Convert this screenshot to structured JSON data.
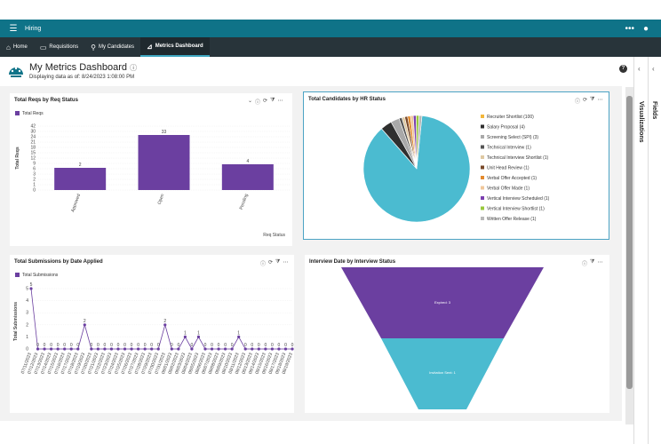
{
  "app": {
    "name": "Hiring",
    "more_icon": "ellipsis-icon",
    "user_icon": "user-icon"
  },
  "nav": {
    "tabs": [
      {
        "label": "Home",
        "icon": "home-icon"
      },
      {
        "label": "Requisitions",
        "icon": "document-icon"
      },
      {
        "label": "My Candidates",
        "icon": "people-icon"
      },
      {
        "label": "Metrics Dashboard",
        "icon": "chart-icon",
        "active": true
      }
    ]
  },
  "header": {
    "title": "My Metrics Dashboard",
    "subtitle": "Displaying data as of: 8/24/2023 1:08:00 PM"
  },
  "side": {
    "visualizations": "Visualizations",
    "fields": "Fields"
  },
  "colors": {
    "accent": "#0f7388",
    "navbar": "#28343a",
    "purple": "#6b3fa0"
  },
  "cards": {
    "reqs": {
      "title": "Total Reqs by Req Status",
      "legend": "Total Reqs",
      "ylabel": "Total Reqs",
      "xlabel": "Req Status"
    },
    "candidates": {
      "title": "Total Candidates by HR Status"
    },
    "submissions": {
      "title": "Total Submissions by Date Applied",
      "legend": "Total Submissions",
      "ylabel": "Total Submissions"
    },
    "interview": {
      "title": "Interview Date by Interview Status",
      "funnel": [
        {
          "label": "Expired: 3",
          "value": 3,
          "color": "#6b3fa0"
        },
        {
          "label": "Invitation Sent: 1",
          "value": 1,
          "color": "#4bbbd0"
        }
      ]
    }
  },
  "chart_data": [
    {
      "type": "bar",
      "title": "Total Reqs by Req Status",
      "categories": [
        "Approved",
        "Open",
        "Pending"
      ],
      "values": [
        2,
        33,
        4
      ],
      "data_labels": [
        "2",
        "33",
        "4"
      ],
      "ytick_labels": [
        "0",
        "1",
        "2",
        "3",
        "6",
        "9",
        "12",
        "15",
        "18",
        "21",
        "24",
        "30",
        "42"
      ],
      "xlabel": "Req Status",
      "ylabel": "Total Reqs"
    },
    {
      "type": "pie",
      "title": "Total Candidates by HR Status",
      "slices": [
        {
          "label": "Recruiter Shortlist (100)",
          "value": 100,
          "color": "#f3b73b"
        },
        {
          "label": "Salary Proposal (4)",
          "value": 4,
          "color": "#2f2f2f"
        },
        {
          "label": "Screening Select (SPI) (3)",
          "value": 3,
          "color": "#a9a9a9"
        },
        {
          "label": "Technical Interview (1)",
          "value": 1,
          "color": "#555555"
        },
        {
          "label": "Technical Interview Shortlist (1)",
          "value": 1,
          "color": "#dfc9a3"
        },
        {
          "label": "Unit Head Review (1)",
          "value": 1,
          "color": "#7a4a2a"
        },
        {
          "label": "Verbal Offer Accepted (1)",
          "value": 1,
          "color": "#e38a2e"
        },
        {
          "label": "Verbal Offer Made (1)",
          "value": 1,
          "color": "#f0c79b"
        },
        {
          "label": "Vertical Interview Scheduled (1)",
          "value": 1,
          "color": "#7c3fb0"
        },
        {
          "label": "Vertical Interview Shortlist (1)",
          "value": 1,
          "color": "#99c93c"
        },
        {
          "label": "Written Offer Release (1)",
          "value": 1,
          "color": "#b8b8b8"
        }
      ],
      "legend_position": "right"
    },
    {
      "type": "line",
      "title": "Total Submissions by Date Applied",
      "x": [
        "07/11/2023",
        "07/12/2023",
        "07/13/2023",
        "07/14/2023",
        "07/15/2023",
        "07/16/2023",
        "07/17/2023",
        "07/18/2023",
        "07/19/2023",
        "07/20/2023",
        "07/21/2023",
        "07/22/2023",
        "07/23/2023",
        "07/24/2023",
        "07/25/2023",
        "07/26/2023",
        "07/27/2023",
        "07/28/2023",
        "07/29/2023",
        "07/30/2023",
        "07/31/2023",
        "08/01/2023",
        "08/02/2023",
        "08/03/2023",
        "08/04/2023",
        "08/05/2023",
        "08/06/2023",
        "08/07/2023",
        "08/08/2023",
        "08/09/2023",
        "08/10/2023",
        "08/11/2023",
        "08/12/2023",
        "08/13/2023",
        "08/14/2023",
        "08/15/2023",
        "08/16/2023",
        "08/17/2023",
        "08/18/2023",
        "08/19/2023"
      ],
      "values": [
        5,
        0,
        0,
        0,
        0,
        0,
        0,
        0,
        2,
        0,
        0,
        0,
        0,
        0,
        0,
        0,
        0,
        0,
        0,
        0,
        2,
        0,
        0,
        1,
        0,
        1,
        0,
        0,
        0,
        0,
        0,
        1,
        0,
        0,
        0,
        0,
        0,
        0,
        0,
        0
      ],
      "ylim": [
        0,
        5
      ],
      "ylabel": "Total Submissions"
    },
    {
      "type": "funnel",
      "title": "Interview Date by Interview Status",
      "categories": [
        "Expired",
        "Invitation Sent"
      ],
      "values": [
        3,
        1
      ]
    }
  ]
}
